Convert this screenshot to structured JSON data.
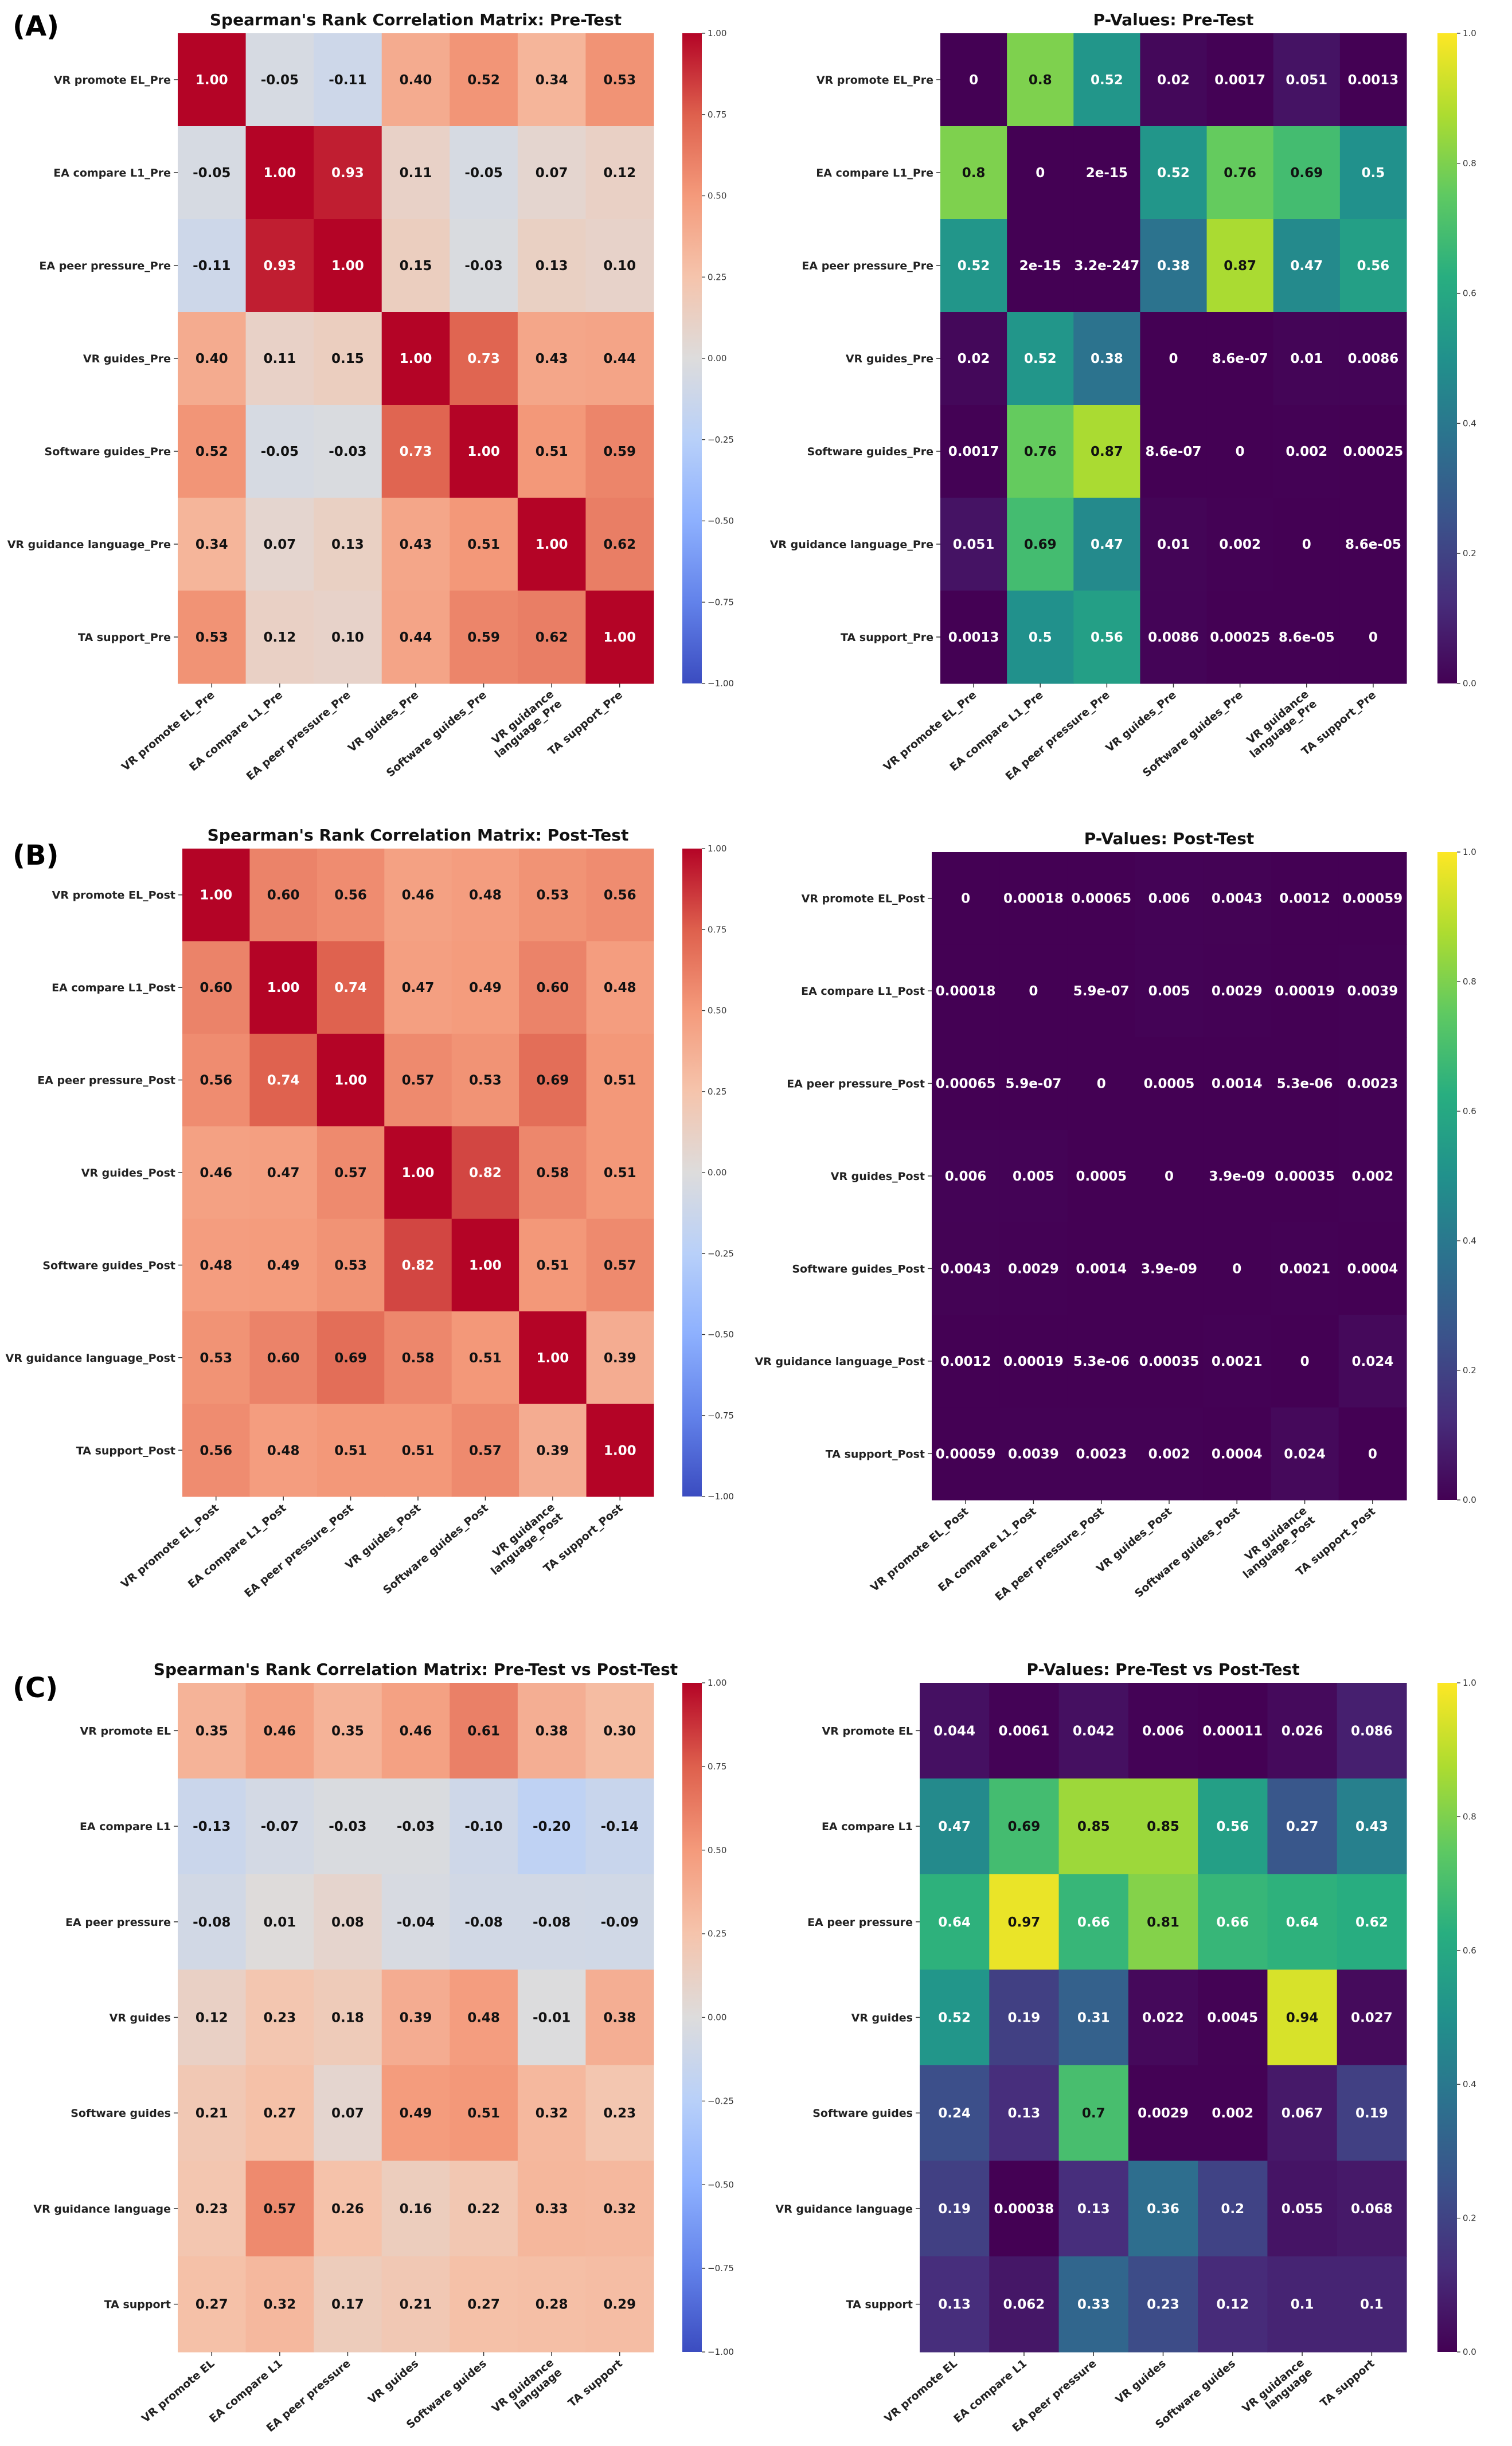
{
  "figure": {
    "panels": [
      "(A)",
      "(B)",
      "(C)"
    ]
  },
  "chart_data": [
    {
      "type": "heatmap",
      "panel": "(A)",
      "title": "Spearman's Rank Correlation Matrix: Pre-Test",
      "rows": [
        "VR promote EL_Pre",
        "EA compare L1_Pre",
        "EA peer pressure_Pre",
        "VR guides_Pre",
        "Software guides_Pre",
        "VR guidance language_Pre",
        "TA support_Pre"
      ],
      "cols": [
        "VR promote EL_Pre",
        "EA compare L1_Pre",
        "EA peer pressure_Pre",
        "VR guides_Pre",
        "Software guides_Pre",
        [
          "VR guidance",
          "language_Pre"
        ],
        "TA support_Pre"
      ],
      "values": [
        [
          1.0,
          -0.05,
          -0.11,
          0.4,
          0.52,
          0.34,
          0.53
        ],
        [
          -0.05,
          1.0,
          0.93,
          0.11,
          -0.05,
          0.07,
          0.12
        ],
        [
          -0.11,
          0.93,
          1.0,
          0.15,
          -0.03,
          0.13,
          0.1
        ],
        [
          0.4,
          0.11,
          0.15,
          1.0,
          0.73,
          0.43,
          0.44
        ],
        [
          0.52,
          -0.05,
          -0.03,
          0.73,
          1.0,
          0.51,
          0.59
        ],
        [
          0.34,
          0.07,
          0.13,
          0.43,
          0.51,
          1.0,
          0.62
        ],
        [
          0.53,
          0.12,
          0.1,
          0.44,
          0.59,
          0.62,
          1.0
        ]
      ],
      "colormap": "coolwarm",
      "vmin": -1,
      "vmax": 1,
      "colorbar_ticks": [
        "1.00",
        "0.75",
        "0.50",
        "0.25",
        "0.00",
        "−0.25",
        "−0.50",
        "−0.75",
        "−1.00"
      ]
    },
    {
      "type": "heatmap",
      "panel": "(A)",
      "title": "P-Values: Pre-Test",
      "rows": [
        "VR promote EL_Pre",
        "EA compare L1_Pre",
        "EA peer pressure_Pre",
        "VR guides_Pre",
        "Software guides_Pre",
        "VR guidance language_Pre",
        "TA support_Pre"
      ],
      "cols": [
        "VR promote EL_Pre",
        "EA compare L1_Pre",
        "EA peer pressure_Pre",
        "VR guides_Pre",
        "Software guides_Pre",
        [
          "VR guidance",
          "language_Pre"
        ],
        "TA support_Pre"
      ],
      "labels": [
        [
          "0",
          "0.8",
          "0.52",
          "0.02",
          "0.0017",
          "0.051",
          "0.0013"
        ],
        [
          "0.8",
          "0",
          "2e-15",
          "0.52",
          "0.76",
          "0.69",
          "0.5"
        ],
        [
          "0.52",
          "2e-15",
          "3.2e-247",
          "0.38",
          "0.87",
          "0.47",
          "0.56"
        ],
        [
          "0.02",
          "0.52",
          "0.38",
          "0",
          "8.6e-07",
          "0.01",
          "0.0086"
        ],
        [
          "0.0017",
          "0.76",
          "0.87",
          "8.6e-07",
          "0",
          "0.002",
          "0.00025"
        ],
        [
          "0.051",
          "0.69",
          "0.47",
          "0.01",
          "0.002",
          "0",
          "8.6e-05"
        ],
        [
          "0.0013",
          "0.5",
          "0.56",
          "0.0086",
          "0.00025",
          "8.6e-05",
          "0"
        ]
      ],
      "values": [
        [
          0,
          0.8,
          0.52,
          0.02,
          0.0017,
          0.051,
          0.0013
        ],
        [
          0.8,
          0,
          2e-15,
          0.52,
          0.76,
          0.69,
          0.5
        ],
        [
          0.52,
          2e-15,
          3.2e-247,
          0.38,
          0.87,
          0.47,
          0.56
        ],
        [
          0.02,
          0.52,
          0.38,
          0,
          8.6e-07,
          0.01,
          0.0086
        ],
        [
          0.0017,
          0.76,
          0.87,
          8.6e-07,
          0,
          0.002,
          0.00025
        ],
        [
          0.051,
          0.69,
          0.47,
          0.01,
          0.002,
          0,
          8.6e-05
        ],
        [
          0.0013,
          0.5,
          0.56,
          0.0086,
          0.00025,
          8.6e-05,
          0
        ]
      ],
      "colormap": "viridis",
      "vmin": 0,
      "vmax": 1,
      "colorbar_ticks": [
        "1.0",
        "0.8",
        "0.6",
        "0.4",
        "0.2",
        "0.0"
      ]
    },
    {
      "type": "heatmap",
      "panel": "(B)",
      "title": "Spearman's Rank Correlation Matrix: Post-Test",
      "rows": [
        "VR promote EL_Post",
        "EA compare L1_Post",
        "EA peer pressure_Post",
        "VR guides_Post",
        "Software guides_Post",
        "VR guidance language_Post",
        "TA support_Post"
      ],
      "cols": [
        "VR promote EL_Post",
        "EA compare L1_Post",
        "EA peer pressure_Post",
        "VR guides_Post",
        "Software guides_Post",
        [
          "VR guidance",
          "language_Post"
        ],
        "TA support_Post"
      ],
      "values": [
        [
          1.0,
          0.6,
          0.56,
          0.46,
          0.48,
          0.53,
          0.56
        ],
        [
          0.6,
          1.0,
          0.74,
          0.47,
          0.49,
          0.6,
          0.48
        ],
        [
          0.56,
          0.74,
          1.0,
          0.57,
          0.53,
          0.69,
          0.51
        ],
        [
          0.46,
          0.47,
          0.57,
          1.0,
          0.82,
          0.58,
          0.51
        ],
        [
          0.48,
          0.49,
          0.53,
          0.82,
          1.0,
          0.51,
          0.57
        ],
        [
          0.53,
          0.6,
          0.69,
          0.58,
          0.51,
          1.0,
          0.39
        ],
        [
          0.56,
          0.48,
          0.51,
          0.51,
          0.57,
          0.39,
          1.0
        ]
      ],
      "colormap": "coolwarm",
      "vmin": -1,
      "vmax": 1,
      "colorbar_ticks": [
        "1.00",
        "0.75",
        "0.50",
        "0.25",
        "0.00",
        "−0.25",
        "−0.50",
        "−0.75",
        "−1.00"
      ]
    },
    {
      "type": "heatmap",
      "panel": "(B)",
      "title": "P-Values: Post-Test",
      "rows": [
        "VR promote EL_Post",
        "EA compare L1_Post",
        "EA peer pressure_Post",
        "VR guides_Post",
        "Software guides_Post",
        "VR guidance language_Post",
        "TA support_Post"
      ],
      "cols": [
        "VR promote EL_Post",
        "EA compare L1_Post",
        "EA peer pressure_Post",
        "VR guides_Post",
        "Software guides_Post",
        [
          "VR guidance",
          "language_Post"
        ],
        "TA support_Post"
      ],
      "labels": [
        [
          "0",
          "0.00018",
          "0.00065",
          "0.006",
          "0.0043",
          "0.0012",
          "0.00059"
        ],
        [
          "0.00018",
          "0",
          "5.9e-07",
          "0.005",
          "0.0029",
          "0.00019",
          "0.0039"
        ],
        [
          "0.00065",
          "5.9e-07",
          "0",
          "0.0005",
          "0.0014",
          "5.3e-06",
          "0.0023"
        ],
        [
          "0.006",
          "0.005",
          "0.0005",
          "0",
          "3.9e-09",
          "0.00035",
          "0.002"
        ],
        [
          "0.0043",
          "0.0029",
          "0.0014",
          "3.9e-09",
          "0",
          "0.0021",
          "0.0004"
        ],
        [
          "0.0012",
          "0.00019",
          "5.3e-06",
          "0.00035",
          "0.0021",
          "0",
          "0.024"
        ],
        [
          "0.00059",
          "0.0039",
          "0.0023",
          "0.002",
          "0.0004",
          "0.024",
          "0"
        ]
      ],
      "values": [
        [
          0,
          0.00018,
          0.00065,
          0.006,
          0.0043,
          0.0012,
          0.00059
        ],
        [
          0.00018,
          0,
          5.9e-07,
          0.005,
          0.0029,
          0.00019,
          0.0039
        ],
        [
          0.00065,
          5.9e-07,
          0,
          0.0005,
          0.0014,
          5.3e-06,
          0.0023
        ],
        [
          0.006,
          0.005,
          0.0005,
          0,
          3.9e-09,
          0.00035,
          0.002
        ],
        [
          0.0043,
          0.0029,
          0.0014,
          3.9e-09,
          0,
          0.0021,
          0.0004
        ],
        [
          0.0012,
          0.00019,
          5.3e-06,
          0.00035,
          0.0021,
          0,
          0.024
        ],
        [
          0.00059,
          0.0039,
          0.0023,
          0.002,
          0.0004,
          0.024,
          0
        ]
      ],
      "colormap": "viridis",
      "vmin": 0,
      "vmax": 1,
      "colorbar_ticks": [
        "1.0",
        "0.8",
        "0.6",
        "0.4",
        "0.2",
        "0.0"
      ]
    },
    {
      "type": "heatmap",
      "panel": "(C)",
      "title": "Spearman's Rank Correlation Matrix: Pre-Test vs Post-Test",
      "rows": [
        "VR promote EL",
        "EA compare L1",
        "EA peer pressure",
        "VR guides",
        "Software guides",
        "VR guidance language",
        "TA support"
      ],
      "cols": [
        "VR promote EL",
        "EA compare L1",
        "EA peer pressure",
        "VR guides",
        "Software guides",
        [
          "VR guidance",
          "language"
        ],
        "TA support"
      ],
      "values": [
        [
          0.35,
          0.46,
          0.35,
          0.46,
          0.61,
          0.38,
          0.3
        ],
        [
          -0.13,
          -0.07,
          -0.03,
          -0.03,
          -0.1,
          -0.2,
          -0.14
        ],
        [
          -0.08,
          0.01,
          0.08,
          -0.04,
          -0.08,
          -0.08,
          -0.09
        ],
        [
          0.12,
          0.23,
          0.18,
          0.39,
          0.48,
          -0.01,
          0.38
        ],
        [
          0.21,
          0.27,
          0.07,
          0.49,
          0.51,
          0.32,
          0.23
        ],
        [
          0.23,
          0.57,
          0.26,
          0.16,
          0.22,
          0.33,
          0.32
        ],
        [
          0.27,
          0.32,
          0.17,
          0.21,
          0.27,
          0.28,
          0.29
        ]
      ],
      "colormap": "coolwarm",
      "vmin": -1,
      "vmax": 1,
      "colorbar_ticks": [
        "1.00",
        "0.75",
        "0.50",
        "0.25",
        "0.00",
        "−0.25",
        "−0.50",
        "−0.75",
        "−1.00"
      ]
    },
    {
      "type": "heatmap",
      "panel": "(C)",
      "title": "P-Values: Pre-Test vs Post-Test",
      "rows": [
        "VR promote EL",
        "EA compare L1",
        "EA peer pressure",
        "VR guides",
        "Software guides",
        "VR guidance language",
        "TA support"
      ],
      "cols": [
        "VR promote EL",
        "EA compare L1",
        "EA peer pressure",
        "VR guides",
        "Software guides",
        [
          "VR guidance",
          "language"
        ],
        "TA support"
      ],
      "labels": [
        [
          "0.044",
          "0.0061",
          "0.042",
          "0.006",
          "0.00011",
          "0.026",
          "0.086"
        ],
        [
          "0.47",
          "0.69",
          "0.85",
          "0.85",
          "0.56",
          "0.27",
          "0.43"
        ],
        [
          "0.64",
          "0.97",
          "0.66",
          "0.81",
          "0.66",
          "0.64",
          "0.62"
        ],
        [
          "0.52",
          "0.19",
          "0.31",
          "0.022",
          "0.0045",
          "0.94",
          "0.027"
        ],
        [
          "0.24",
          "0.13",
          "0.7",
          "0.0029",
          "0.002",
          "0.067",
          "0.19"
        ],
        [
          "0.19",
          "0.00038",
          "0.13",
          "0.36",
          "0.2",
          "0.055",
          "0.068"
        ],
        [
          "0.13",
          "0.062",
          "0.33",
          "0.23",
          "0.12",
          "0.1",
          "0.1"
        ]
      ],
      "values": [
        [
          0.044,
          0.0061,
          0.042,
          0.006,
          0.00011,
          0.026,
          0.086
        ],
        [
          0.47,
          0.69,
          0.85,
          0.85,
          0.56,
          0.27,
          0.43
        ],
        [
          0.64,
          0.97,
          0.66,
          0.81,
          0.66,
          0.64,
          0.62
        ],
        [
          0.52,
          0.19,
          0.31,
          0.022,
          0.0045,
          0.94,
          0.027
        ],
        [
          0.24,
          0.13,
          0.7,
          0.0029,
          0.002,
          0.067,
          0.19
        ],
        [
          0.19,
          0.00038,
          0.13,
          0.36,
          0.2,
          0.055,
          0.068
        ],
        [
          0.13,
          0.062,
          0.33,
          0.23,
          0.12,
          0.1,
          0.1
        ]
      ],
      "colormap": "viridis",
      "vmin": 0,
      "vmax": 1,
      "colorbar_ticks": [
        "1.0",
        "0.8",
        "0.6",
        "0.4",
        "0.2",
        "0.0"
      ]
    }
  ]
}
